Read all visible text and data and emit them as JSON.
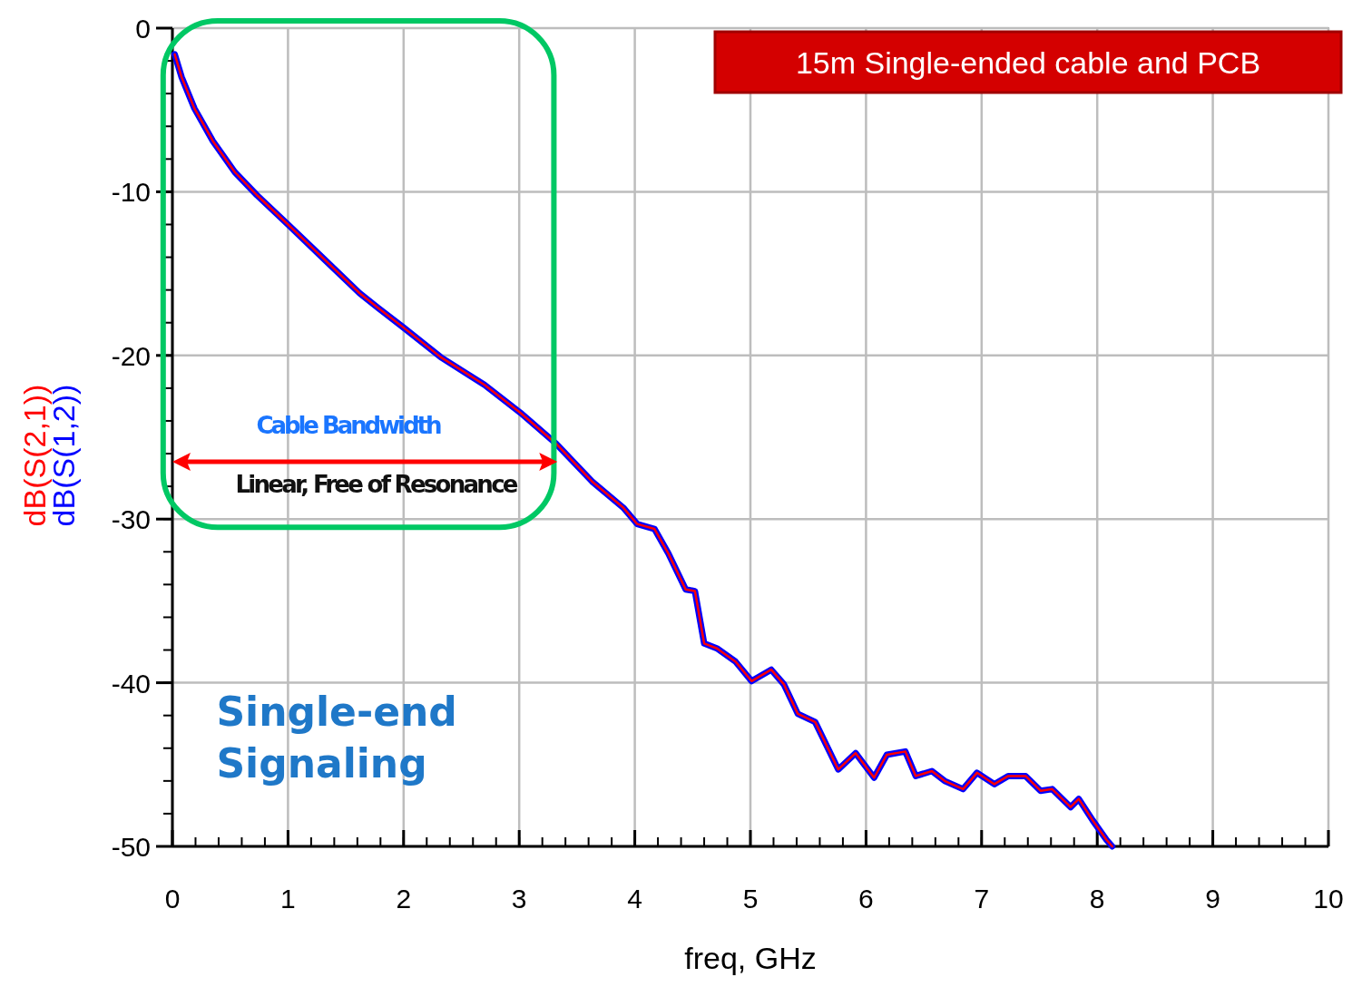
{
  "chart_data": {
    "type": "line",
    "title": "15m Single-ended cable and PCB",
    "xlabel": "freq, GHz",
    "x": [
      0.02,
      0.08,
      0.19,
      0.35,
      0.54,
      0.73,
      1.0,
      1.31,
      1.62,
      1.78,
      2.0,
      2.32,
      2.7,
      3.01,
      3.32,
      3.63,
      3.9,
      4.02,
      4.17,
      4.29,
      4.44,
      4.52,
      4.6,
      4.71,
      4.87,
      5.01,
      5.18,
      5.29,
      5.41,
      5.56,
      5.76,
      5.91,
      6.07,
      6.18,
      6.34,
      6.43,
      6.57,
      6.68,
      6.84,
      6.96,
      7.11,
      7.23,
      7.38,
      7.51,
      7.61,
      7.77,
      7.84,
      7.96,
      8.08,
      8.13
    ],
    "series": [
      {
        "name": "dB(S(1,2))",
        "color": "#0000ff",
        "values": [
          -1.6,
          -3.0,
          -4.9,
          -6.9,
          -8.8,
          -10.2,
          -12.0,
          -14.1,
          -16.2,
          -17.1,
          -18.3,
          -20.1,
          -21.8,
          -23.5,
          -25.4,
          -27.7,
          -29.3,
          -30.3,
          -30.6,
          -32.1,
          -34.3,
          -34.4,
          -37.6,
          -37.9,
          -38.7,
          -39.9,
          -39.2,
          -40.1,
          -41.9,
          -42.4,
          -45.3,
          -44.3,
          -45.8,
          -44.4,
          -44.2,
          -45.7,
          -45.4,
          -46.0,
          -46.5,
          -45.5,
          -46.2,
          -45.7,
          -45.7,
          -46.6,
          -46.5,
          -47.6,
          -47.1,
          -48.4,
          -49.6,
          -50
        ]
      },
      {
        "name": "dB(S(2,1))",
        "color": "#ff0000",
        "values": [
          -1.6,
          -3.0,
          -4.9,
          -6.9,
          -8.8,
          -10.2,
          -12.0,
          -14.1,
          -16.2,
          -17.1,
          -18.3,
          -20.1,
          -21.8,
          -23.5,
          -25.4,
          -27.7,
          -29.3,
          -30.3,
          -30.6,
          -32.1,
          -34.3,
          -34.4,
          -37.6,
          -37.9,
          -38.7,
          -39.9,
          -39.2,
          -40.1,
          -41.9,
          -42.4,
          -45.3,
          -44.3,
          -45.8,
          -44.4,
          -44.2,
          -45.7,
          -45.4,
          -46.0,
          -46.5,
          -45.5,
          -46.2,
          -45.7,
          -45.7,
          -46.6,
          -46.5,
          -47.6,
          -47.1,
          -48.4,
          -49.6,
          -50
        ]
      }
    ],
    "xlim": [
      0,
      10
    ],
    "xticks": [
      0,
      1,
      2,
      3,
      4,
      5,
      6,
      7,
      8,
      9,
      10
    ],
    "ylim": [
      -50,
      0
    ],
    "yticks": [
      -50,
      -40,
      -30,
      -20,
      -10,
      0
    ],
    "grid": true,
    "legend": "left",
    "marker": "none",
    "line_style": "solid",
    "annotations": [
      "Cable Bandwidth",
      "Linear, Free of Resonance",
      "Single-end Signaling"
    ]
  }
}
